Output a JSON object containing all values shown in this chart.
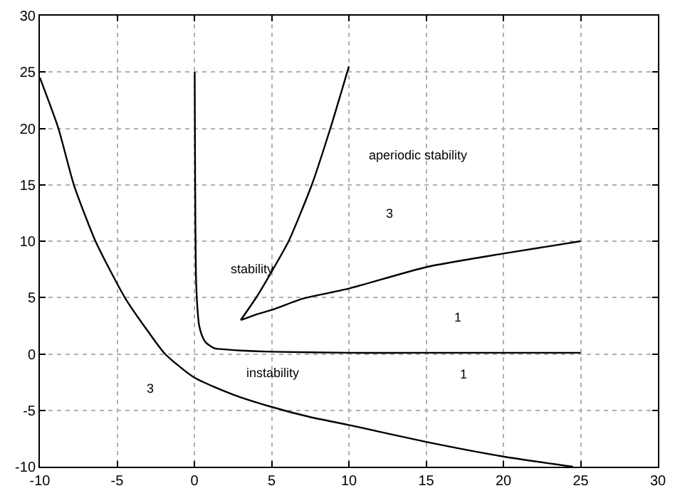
{
  "chart_data": {
    "type": "line",
    "xlim": [
      -10,
      30
    ],
    "ylim": [
      -10,
      30
    ],
    "xticks": [
      -10,
      -5,
      0,
      5,
      10,
      15,
      20,
      25,
      30
    ],
    "yticks": [
      -10,
      -5,
      0,
      5,
      10,
      15,
      20,
      25,
      30
    ],
    "grid": true,
    "marker": "none",
    "line_style": "solid",
    "series": [
      {
        "color": "#000000",
        "x": [
          -10,
          -8.8,
          -7.8,
          -6.4,
          -4.5,
          -3,
          -1.9,
          0,
          2.5,
          5,
          7.5,
          10,
          15,
          20,
          24.5
        ],
        "values": [
          24.5,
          20,
          15,
          10,
          5,
          2,
          0,
          -2.1,
          -3.6,
          -4.7,
          -5.6,
          -6.3,
          -7.8,
          -9.1,
          -10
        ]
      },
      {
        "color": "#000000",
        "x": [
          0.02,
          0.05,
          0.1,
          0.2,
          0.3,
          0.5,
          0.75,
          1.3,
          2,
          3,
          5,
          10,
          15,
          20,
          25
        ],
        "values": [
          25,
          15,
          7,
          4,
          2.6,
          1.6,
          1,
          0.5,
          0.4,
          0.3,
          0.2,
          0.1,
          0.1,
          0.1,
          0.1
        ]
      },
      {
        "color": "#000000",
        "x": [
          3,
          4,
          5,
          6.1,
          7.6,
          8.8,
          10
        ],
        "values": [
          3,
          5,
          7.3,
          10,
          15,
          20,
          25.5
        ]
      },
      {
        "color": "#000000",
        "x": [
          3,
          4,
          5,
          7,
          10,
          15,
          20,
          25
        ],
        "values": [
          3,
          3.5,
          3.9,
          4.9,
          5.8,
          7.7,
          8.9,
          10
        ]
      }
    ],
    "annotations": [
      "aperiodic stability",
      "3",
      "stability",
      "1",
      "instability",
      "1",
      "3"
    ]
  }
}
